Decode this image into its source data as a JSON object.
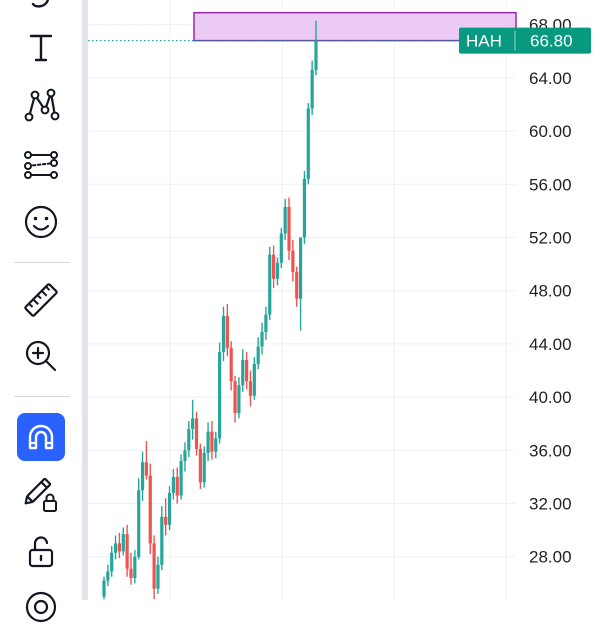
{
  "toolbar": {
    "tools": [
      {
        "name": "curve-tool-icon"
      },
      {
        "name": "text-tool-icon"
      },
      {
        "name": "pattern-tool-icon"
      },
      {
        "name": "prediction-tool-icon"
      },
      {
        "name": "emoji-tool-icon"
      },
      {
        "name": "ruler-tool-icon"
      },
      {
        "name": "zoom-in-tool-icon"
      },
      {
        "name": "magnet-mode-icon",
        "active": true
      },
      {
        "name": "lock-drawings-icon"
      },
      {
        "name": "unlock-all-icon"
      }
    ]
  },
  "colors": {
    "up": "#26a69a",
    "down": "#ef5350",
    "accent": "#2962ff",
    "badge": "#089981",
    "rectangle_fill": "#e8c2f2",
    "rectangle_border": "#9c27b0"
  },
  "chart": {
    "symbol": "HAH",
    "last_price": "66.80",
    "price_ticks": [
      "68.00",
      "64.00",
      "60.00",
      "56.00",
      "52.00",
      "48.00",
      "44.00",
      "40.00",
      "36.00",
      "32.00",
      "28.00"
    ]
  },
  "chart_data": {
    "type": "candlestick",
    "ylim": [
      25.5,
      68.5
    ],
    "last_value": 66.8,
    "zone": {
      "low": 66.8,
      "high": 68.9
    },
    "series": [
      {
        "values": [
          [
            25.0,
            26.5,
            24.8,
            26.2
          ],
          [
            26.2,
            27.4,
            25.8,
            26.9
          ],
          [
            26.9,
            28.8,
            26.5,
            28.3
          ],
          [
            28.3,
            29.6,
            27.8,
            29.0
          ],
          [
            29.0,
            29.8,
            27.9,
            28.4
          ],
          [
            28.4,
            30.2,
            28.1,
            29.7
          ],
          [
            29.7,
            30.4,
            26.5,
            27.1
          ],
          [
            27.1,
            28.3,
            25.9,
            26.4
          ],
          [
            26.4,
            28.5,
            26.0,
            28.0
          ],
          [
            28.0,
            33.9,
            27.8,
            33.0
          ],
          [
            33.0,
            35.9,
            32.2,
            35.1
          ],
          [
            35.1,
            36.7,
            33.8,
            34.1
          ],
          [
            34.1,
            35.0,
            28.2,
            29.0
          ],
          [
            29.0,
            29.6,
            24.8,
            25.6
          ],
          [
            25.6,
            28.0,
            25.2,
            27.4
          ],
          [
            27.4,
            31.8,
            27.0,
            31.0
          ],
          [
            31.0,
            32.4,
            29.6,
            30.4
          ],
          [
            30.4,
            33.3,
            30.0,
            32.8
          ],
          [
            32.8,
            34.6,
            32.3,
            34.0
          ],
          [
            34.0,
            34.7,
            32.0,
            32.6
          ],
          [
            32.6,
            35.7,
            32.3,
            35.2
          ],
          [
            35.2,
            36.6,
            34.4,
            36.0
          ],
          [
            36.0,
            38.2,
            35.5,
            37.6
          ],
          [
            37.6,
            39.8,
            36.8,
            38.4
          ],
          [
            38.4,
            38.9,
            35.6,
            36.1
          ],
          [
            36.1,
            36.5,
            33.1,
            33.6
          ],
          [
            33.6,
            36.3,
            33.2,
            35.8
          ],
          [
            35.8,
            38.1,
            35.2,
            37.4
          ],
          [
            37.4,
            38.2,
            35.3,
            35.9
          ],
          [
            35.9,
            37.4,
            35.4,
            36.9
          ],
          [
            36.9,
            44.1,
            36.5,
            43.4
          ],
          [
            43.4,
            46.8,
            42.7,
            46.1
          ],
          [
            46.1,
            47.0,
            43.1,
            43.7
          ],
          [
            43.7,
            44.2,
            40.5,
            41.2
          ],
          [
            41.2,
            41.6,
            38.1,
            38.8
          ],
          [
            38.8,
            41.5,
            38.4,
            40.9
          ],
          [
            40.9,
            43.6,
            40.4,
            42.8
          ],
          [
            42.8,
            43.4,
            40.6,
            41.2
          ],
          [
            41.2,
            42.0,
            39.3,
            40.1
          ],
          [
            40.1,
            43.0,
            39.8,
            42.5
          ],
          [
            42.5,
            44.5,
            42.1,
            43.8
          ],
          [
            43.8,
            45.6,
            43.2,
            44.9
          ],
          [
            44.9,
            46.8,
            44.3,
            46.2
          ],
          [
            46.2,
            51.3,
            45.8,
            50.7
          ],
          [
            50.7,
            51.4,
            48.2,
            48.9
          ],
          [
            48.9,
            50.5,
            48.4,
            50.1
          ],
          [
            50.1,
            52.7,
            49.7,
            52.3
          ],
          [
            52.3,
            54.9,
            51.8,
            54.3
          ],
          [
            54.3,
            55.0,
            50.3,
            51.0
          ],
          [
            51.0,
            51.8,
            48.7,
            49.4
          ],
          [
            49.4,
            49.8,
            46.8,
            47.4
          ],
          [
            47.4,
            47.8,
            45.0,
            52.0
          ],
          [
            52.0,
            57.0,
            51.5,
            56.4
          ],
          [
            56.4,
            62.1,
            56.0,
            61.7
          ],
          [
            61.7,
            65.3,
            61.2,
            64.6
          ],
          [
            64.6,
            68.3,
            64.2,
            66.8
          ]
        ]
      }
    ]
  }
}
